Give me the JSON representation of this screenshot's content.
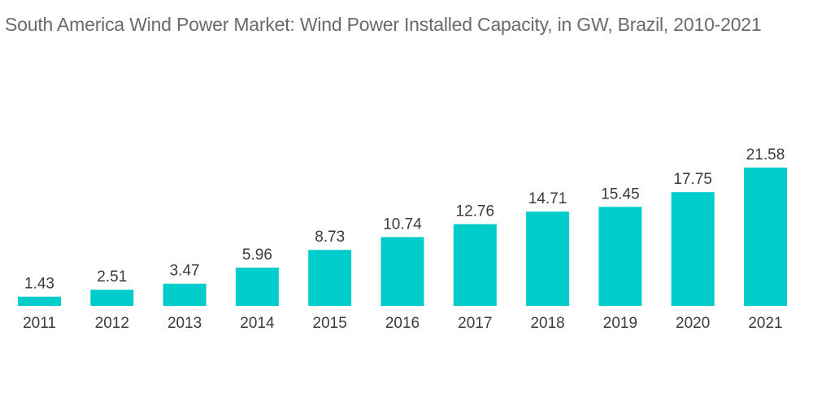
{
  "chart_data": {
    "type": "bar",
    "title": "South America Wind Power Market: Wind Power Installed Capacity, in GW, Brazil,  2010-2021",
    "categories": [
      "2011",
      "2012",
      "2013",
      "2014",
      "2015",
      "2016",
      "2017",
      "2018",
      "2019",
      "2020",
      "2021"
    ],
    "values": [
      1.43,
      2.51,
      3.47,
      5.96,
      8.73,
      10.74,
      12.76,
      14.71,
      15.45,
      17.75,
      21.58
    ],
    "value_labels": [
      "1.43",
      "2.51",
      "3.47",
      "5.96",
      "8.73",
      "10.74",
      "12.76",
      "14.71",
      "15.45",
      "17.75",
      "21.58"
    ],
    "xlabel": "",
    "ylabel": "",
    "ylim": [
      0,
      21.58
    ],
    "grid": false,
    "legend": "none",
    "bar_color": "#00cccc"
  }
}
